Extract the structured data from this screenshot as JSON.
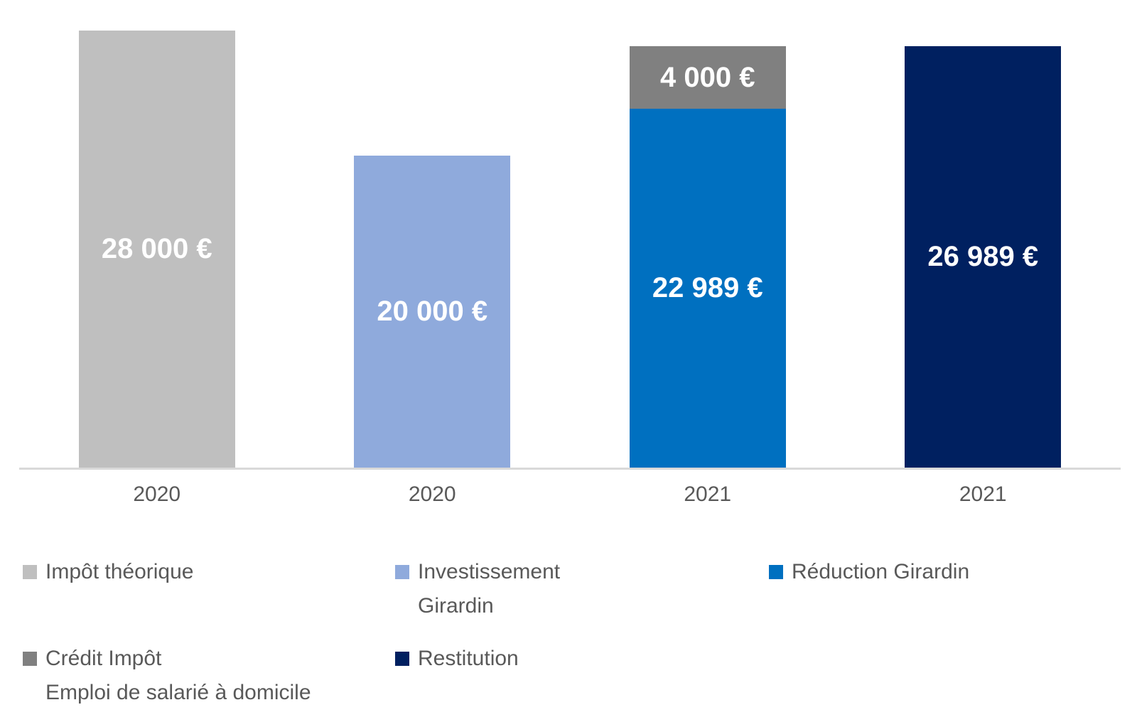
{
  "chart_data": {
    "type": "bar",
    "stacked": true,
    "title": "",
    "unit": "€",
    "background_color": "#FFFFFF",
    "axis_line_color": "#D9D9D9",
    "category_label_color": "#595959",
    "categories": [
      "2020",
      "2020",
      "2021",
      "2021"
    ],
    "value_axis": {
      "min": 0,
      "max": 28000,
      "visible": false,
      "gridlines": false
    },
    "bars": [
      {
        "category": "2020",
        "total": 28000,
        "segments": [
          {
            "series": "Impôt théorique",
            "value": 28000,
            "label": "28 000 €",
            "color": "#BFBFBF",
            "label_color": "#FFFFFF"
          }
        ]
      },
      {
        "category": "2020",
        "total": 20000,
        "segments": [
          {
            "series": "Investissement Girardin",
            "value": 20000,
            "label": "20 000 €",
            "color": "#8FAADC",
            "label_color": "#FFFFFF"
          }
        ]
      },
      {
        "category": "2021",
        "total": 26989,
        "segments": [
          {
            "series": "Réduction Girardin",
            "value": 22989,
            "label": "22 989 €",
            "color": "#0070C0",
            "label_color": "#FFFFFF"
          },
          {
            "series": "Crédit Impôt Emploi de salarié à domicile",
            "value": 4000,
            "label": "4 000 €",
            "color": "#808080",
            "label_color": "#FFFFFF"
          }
        ]
      },
      {
        "category": "2021",
        "total": 26989,
        "segments": [
          {
            "series": "Restitution",
            "value": 26989,
            "label": "26 989 €",
            "color": "#002060",
            "label_color": "#FFFFFF"
          }
        ]
      }
    ],
    "legend": {
      "position": "bottom",
      "text_color": "#595959",
      "items": [
        {
          "label": "Impôt théorique",
          "lines": [
            "Impôt théorique"
          ],
          "color": "#BFBFBF"
        },
        {
          "label": "Investissement Girardin",
          "lines": [
            "Investissement",
            "Girardin"
          ],
          "color": "#8FAADC"
        },
        {
          "label": "Réduction Girardin",
          "lines": [
            "Réduction Girardin"
          ],
          "color": "#0070C0"
        },
        {
          "label": "Crédit Impôt Emploi de salarié à domicile",
          "lines": [
            "Crédit Impôt",
            "Emploi de salarié à domicile"
          ],
          "color": "#808080"
        },
        {
          "label": "Restitution",
          "lines": [
            "Restitution"
          ],
          "color": "#002060"
        }
      ]
    }
  }
}
